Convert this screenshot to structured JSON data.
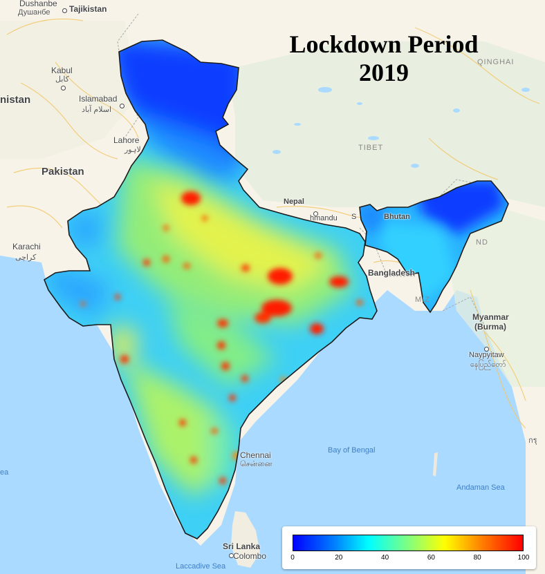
{
  "title": {
    "line1": "Lockdown Period",
    "line2": "2019"
  },
  "labels": {
    "dushanbe": "Dushanbe",
    "dushanbe_local": "Душанбе",
    "tajikistan": "Tajikistan",
    "kabul": "Kabul",
    "kabul_local": "کابل",
    "afghanistan_partial": "nistan",
    "islamabad": "Islamabad",
    "islamabad_local": "اسلام آباد",
    "lahore": "Lahore",
    "lahore_local": "لاہور",
    "pakistan": "Pakistan",
    "karachi": "Karachi",
    "karachi_local": "کراچی",
    "qinghai": "QINGHAI",
    "tibet": "TIBET",
    "nepal": "Nepal",
    "kathmandu_partial": "hmandu",
    "sikkim_partial": "S",
    "bhutan": "Bhutan",
    "bangladesh": "Bangladesh",
    "mizoram_partial": "MIZ",
    "myanmar": "Myanmar",
    "burma": "(Burma)",
    "naypyitaw": "Naypyitaw",
    "naypyitaw_local": "နေပြည်တော်",
    "chennai": "Chennai",
    "chennai_local": "சென்னை",
    "bay_of_bengal": "Bay of Bengal",
    "andaman_sea": "Andaman Sea",
    "sri_lanka": "Sri Lanka",
    "colombo": "Colombo",
    "laccadive_sea": "Laccadive Sea",
    "sea_partial": "ea",
    "manipur_partial": "ND",
    "thailand_partial": "กรุ"
  },
  "legend": {
    "min": 0,
    "max": 100,
    "ticks": [
      "0",
      "20",
      "40",
      "60",
      "80",
      "100"
    ],
    "colors": [
      "#0000ff",
      "#0080ff",
      "#00ffff",
      "#80ff80",
      "#ffff00",
      "#ff8000",
      "#ff0000"
    ]
  },
  "colors": {
    "water": "#aadaff",
    "land": "#f8f4ea",
    "high_terrain": "#e4efe0",
    "boundary": "#1a1a1a"
  }
}
